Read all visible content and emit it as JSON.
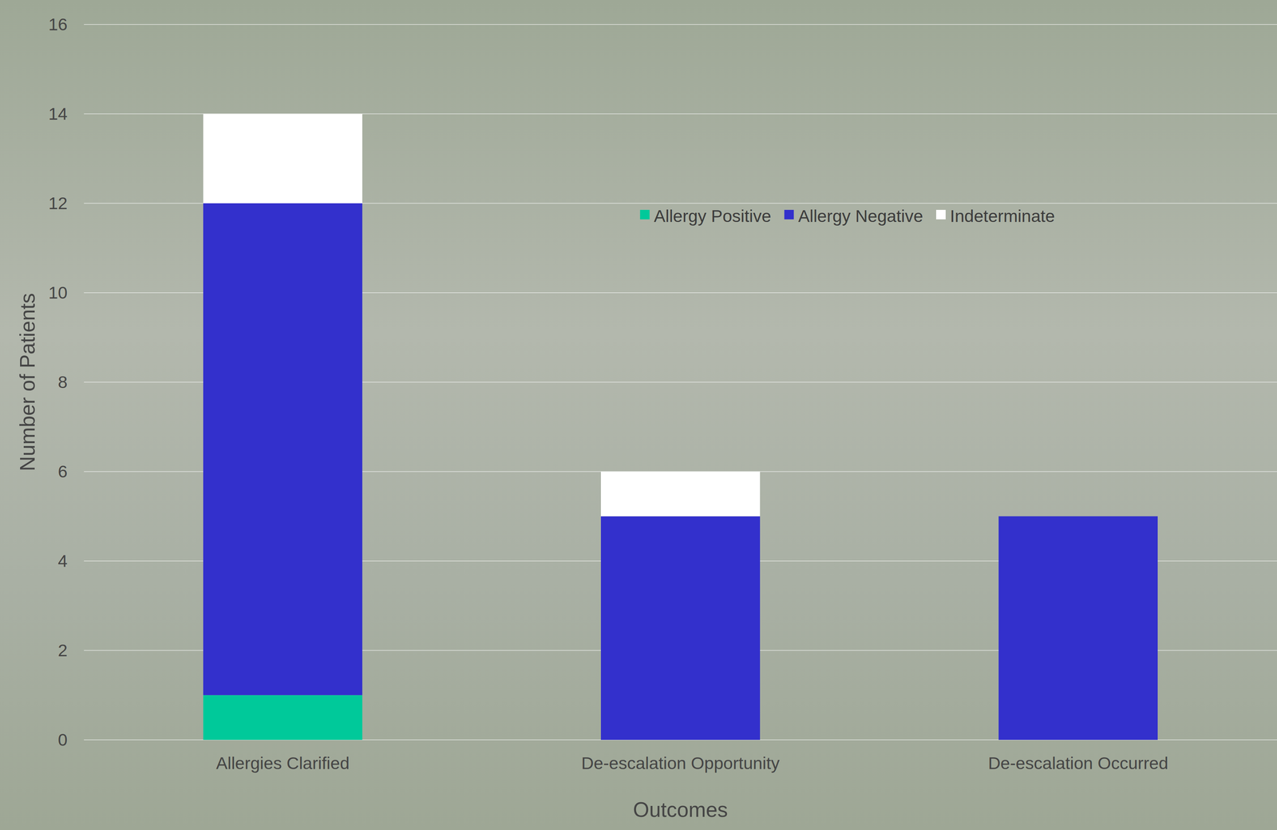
{
  "chart_data": {
    "type": "bar",
    "stacked": true,
    "categories": [
      "Allergies Clarified",
      "De-escalation Opportunity",
      "De-escalation Occurred"
    ],
    "series": [
      {
        "name": "Allergy Positive",
        "color": "#00c99a",
        "values": [
          1,
          0,
          0
        ]
      },
      {
        "name": "Allergy Negative",
        "color": "#3330cc",
        "values": [
          11,
          5,
          5
        ]
      },
      {
        "name": "Indeterminate",
        "color": "#ffffff",
        "values": [
          2,
          1,
          0
        ]
      }
    ],
    "x_label": "Outcomes",
    "y_label": "Number of Patients",
    "ylim": [
      0,
      16
    ],
    "yticks": [
      0,
      2,
      4,
      6,
      8,
      10,
      12,
      14,
      16
    ],
    "grid": true,
    "legend": "top"
  }
}
